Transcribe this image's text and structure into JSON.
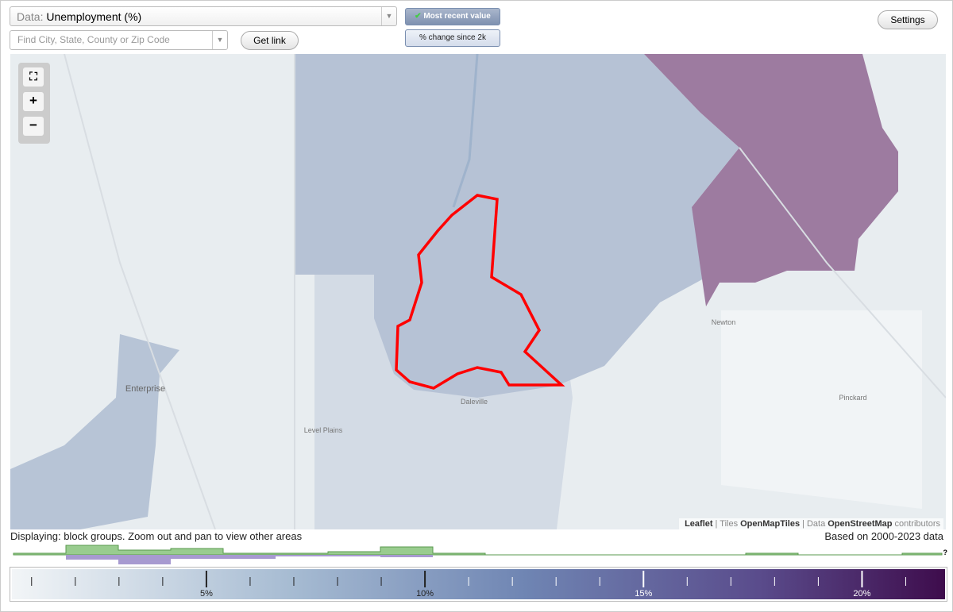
{
  "data_selector": {
    "label": "Data:",
    "value": "Unemployment (%)"
  },
  "mode_buttons": [
    "Most recent value",
    "% change since 2k"
  ],
  "settings": "Settings",
  "search_placeholder": "Find City, State, County or Zip Code",
  "get_link": "Get link",
  "zoom": [
    "+",
    "−"
  ],
  "map_labels": [
    "Enterprise",
    "Level Plains",
    "Daleville",
    "Newton",
    "Pinckard"
  ],
  "attribution": [
    "Leaflet",
    "| Tiles",
    "OpenMapTiles",
    "| Data",
    "OpenStreetMap",
    "contributors"
  ],
  "status": "Displaying: block groups. Zoom out and pan to view other areas",
  "data_range": "Based on 2000-2023 data",
  "help": "?",
  "legend": {
    "range": [
      0.55,
      21.9
    ],
    "ticks": [
      {
        "value": 5,
        "label": "5%"
      },
      {
        "value": 10,
        "label": "10%"
      },
      {
        "value": 15,
        "label": "15%"
      },
      {
        "value": 20,
        "label": "20%"
      }
    ],
    "minor_ticks": [
      1,
      2,
      3,
      4,
      6,
      7,
      8,
      9,
      11,
      12,
      13,
      14,
      16,
      17,
      18,
      19,
      21
    ]
  }
}
